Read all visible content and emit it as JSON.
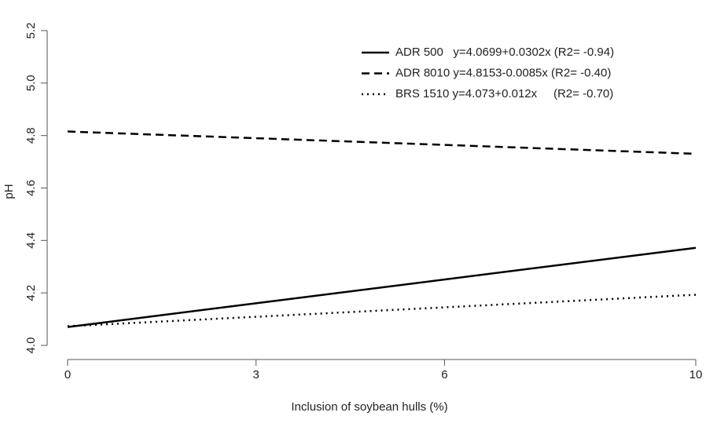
{
  "chart_data": {
    "type": "line",
    "xlabel": "Inclusion of soybean hulls (%)",
    "ylabel": "pH",
    "x": [
      0,
      10
    ],
    "series": [
      {
        "name": "ADR 500   y=4.0699+0.0302x (R2= -0.94)",
        "color": "#000000",
        "style": "solid",
        "values": [
          4.0699,
          4.3719
        ]
      },
      {
        "name": "ADR 8010 y=4.8153-0.0085x (R2= -0.40)",
        "color": "#000000",
        "style": "dashed",
        "values": [
          4.8153,
          4.7303
        ]
      },
      {
        "name": "BRS 1510 y=4.073+0.012x     (R2= -0.70)",
        "color": "#000000",
        "style": "dotted",
        "values": [
          4.073,
          4.193
        ]
      }
    ],
    "xlim": [
      0,
      10
    ],
    "xticks": [
      0,
      3,
      6,
      10
    ],
    "ylim": [
      4.0,
      5.2
    ],
    "yticks": [
      {
        "value": 4,
        "label": "4.0"
      },
      4.2,
      4.4,
      4.6,
      4.8,
      {
        "value": 5,
        "label": "5.0"
      },
      5.2
    ],
    "grid": false,
    "legend": "top-right"
  }
}
